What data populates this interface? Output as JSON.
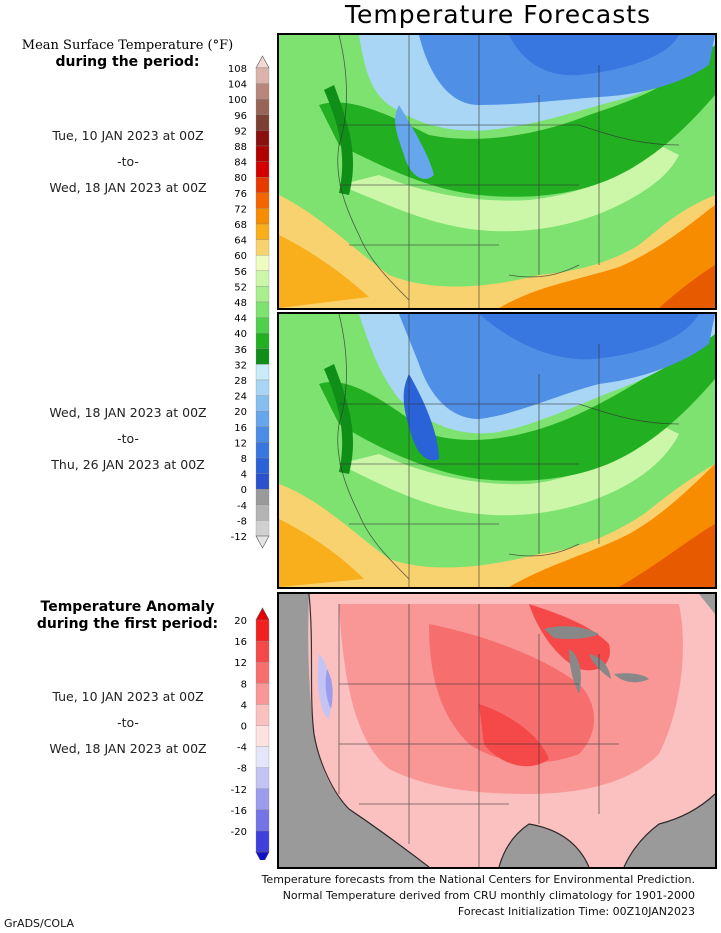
{
  "title": "Temperature Forecasts",
  "legend1": {
    "heading_line1": "Mean Surface Temperature (°F)",
    "heading_line2": "during the period:",
    "ticks": [
      "108",
      "104",
      "100",
      "96",
      "92",
      "88",
      "84",
      "80",
      "76",
      "72",
      "68",
      "64",
      "60",
      "56",
      "52",
      "48",
      "44",
      "40",
      "36",
      "32",
      "28",
      "24",
      "20",
      "16",
      "12",
      "8",
      "4",
      "0",
      "-4",
      "-8",
      "-12"
    ],
    "colors": [
      "#f1d8d2",
      "#dcb3aa",
      "#b8877c",
      "#9a6357",
      "#7c3f33",
      "#8a0f0f",
      "#b00000",
      "#d40000",
      "#e83a00",
      "#f66400",
      "#f88c00",
      "#f9ae1c",
      "#f9d270",
      "#eefcc0",
      "#cdf7a8",
      "#a9ef8e",
      "#7de26f",
      "#4fcf4c",
      "#22b022",
      "#0f8f18",
      "#c8ecf8",
      "#a8d6f4",
      "#86bef0",
      "#66a6ec",
      "#4b8de6",
      "#3877df",
      "#2a62d8",
      "#2a52cc",
      "#9a9a9a",
      "#b4b4b4",
      "#d0d0d0",
      "#e4e4e4"
    ],
    "period1": {
      "start": "Tue, 10 JAN 2023 at 00Z",
      "sep": "-to-",
      "end": "Wed, 18 JAN 2023 at 00Z"
    },
    "period2": {
      "start": "Wed, 18 JAN 2023 at 00Z",
      "sep": "-to-",
      "end": "Thu, 26 JAN 2023 at 00Z"
    }
  },
  "legend2": {
    "heading_line1": "Temperature Anomaly",
    "heading_line2": "during the first period:",
    "ticks": [
      "20",
      "16",
      "12",
      "8",
      "4",
      "0",
      "-4",
      "-8",
      "-12",
      "-16",
      "-20"
    ],
    "colors": [
      "#e80000",
      "#f22020",
      "#f54848",
      "#f76e6e",
      "#f99696",
      "#fbc0c0",
      "#fde2e2",
      "#e6e6fb",
      "#c4c4f4",
      "#9c9cee",
      "#7474e6",
      "#4040dc",
      "#1010cc"
    ],
    "period": {
      "start": "Tue, 10 JAN 2023 at 00Z",
      "sep": "-to-",
      "end": "Wed, 18 JAN 2023 at 00Z"
    }
  },
  "footer": {
    "line1": "Temperature forecasts from the National Centers for Environmental Prediction.",
    "line2": "Normal Temperature derived from CRU monthly climatology for 1901-2000",
    "line3": "Forecast Initialization Time: 00Z10JAN2023"
  },
  "credit": "GrADS/COLA",
  "map_colors": {
    "cold_blue": "#4f8fe6",
    "light_blue": "#a8d6f4",
    "green": "#22b022",
    "light_green": "#a9ef8e",
    "pale_green": "#cdf7a8",
    "yellow": "#f9d270",
    "orange": "#f88c00",
    "red_orange": "#e85a00",
    "anomaly_red": "#f54848",
    "anomaly_pink": "#fbc0c0",
    "land_gray": "#9a9a9a",
    "lake_gray": "#888888"
  }
}
